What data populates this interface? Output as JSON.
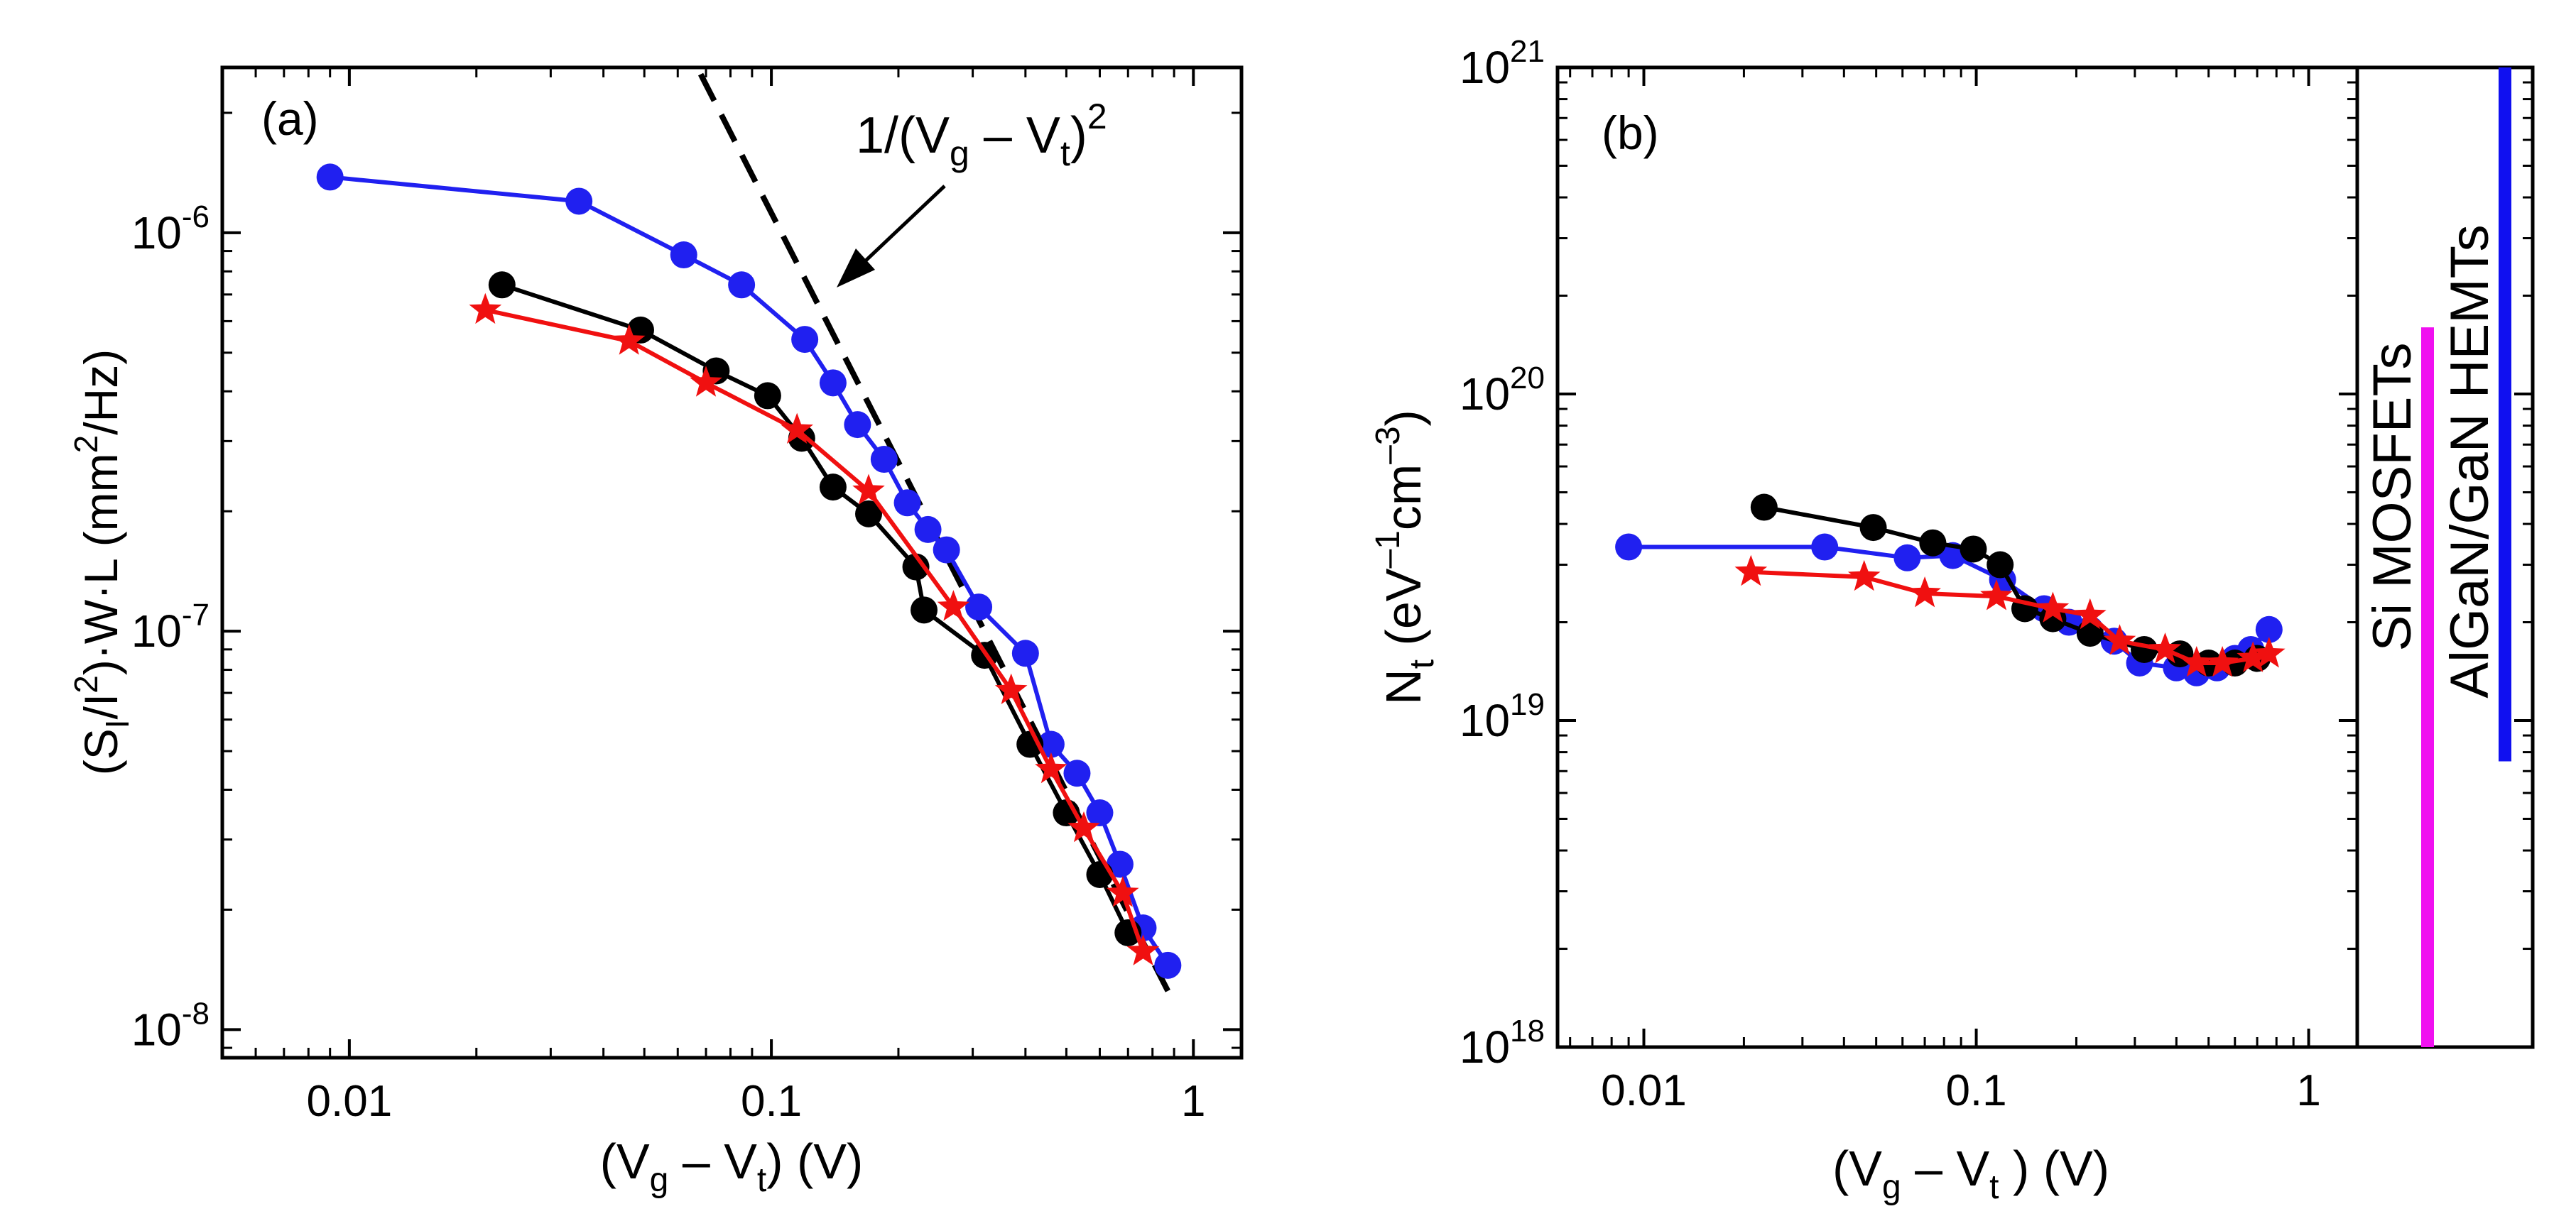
{
  "chart_data": [
    {
      "type": "line",
      "panel_label": "(a)",
      "ylabel": {
        "prefix": "(S",
        "sub1": "I",
        "mid": "/I",
        "sup": "2",
        "rest": ")·W·L (mm",
        "sup2": "2",
        "tail": "/Hz)"
      },
      "xlabel": {
        "a": "(V",
        "sub1": "g",
        "b": " – V",
        "sub2": "t",
        "c": ") (V)"
      },
      "xscale": "log",
      "yscale": "log",
      "xlim": [
        0.005,
        1.3
      ],
      "ylim": [
        8.5e-09,
        2.6e-06
      ],
      "xticks": [
        {
          "v": 0.01,
          "label": "0.01"
        },
        {
          "v": 0.1,
          "label": "0.1"
        },
        {
          "v": 1,
          "label": "1"
        }
      ],
      "yticks": [
        {
          "v": 1e-08,
          "base": "10",
          "exp": "-8"
        },
        {
          "v": 1e-07,
          "base": "10",
          "exp": "-7"
        },
        {
          "v": 1e-06,
          "base": "10",
          "exp": "-6"
        }
      ],
      "annotation": {
        "a": "1/(V",
        "sub1": "g",
        "b": " – V",
        "sub2": "t",
        "c": ")",
        "sup": "2"
      },
      "reference_line": {
        "style": "dashed",
        "x": [
          0.068,
          0.87
        ],
        "y": [
          2.5e-06,
          1.25e-08
        ]
      },
      "series": [
        {
          "color": "#2020f0",
          "marker": "circle",
          "x": [
            0.009,
            0.035,
            0.062,
            0.085,
            0.12,
            0.14,
            0.16,
            0.185,
            0.21,
            0.235,
            0.26,
            0.31,
            0.4,
            0.46,
            0.53,
            0.6,
            0.67,
            0.76,
            0.87
          ],
          "y": [
            1.38e-06,
            1.2e-06,
            8.8e-07,
            7.4e-07,
            5.4e-07,
            4.2e-07,
            3.3e-07,
            2.7e-07,
            2.1e-07,
            1.8e-07,
            1.6e-07,
            1.15e-07,
            8.8e-08,
            5.2e-08,
            4.4e-08,
            3.5e-08,
            2.6e-08,
            1.8e-08,
            1.45e-08
          ]
        },
        {
          "color": "#000000",
          "marker": "circle",
          "x": [
            0.023,
            0.049,
            0.074,
            0.098,
            0.118,
            0.14,
            0.17,
            0.22,
            0.23,
            0.32,
            0.41,
            0.5,
            0.6,
            0.7
          ],
          "y": [
            7.4e-07,
            5.7e-07,
            4.5e-07,
            3.9e-07,
            3.05e-07,
            2.3e-07,
            1.97e-07,
            1.45e-07,
            1.13e-07,
            8.7e-08,
            5.2e-08,
            3.5e-08,
            2.45e-08,
            1.75e-08
          ]
        },
        {
          "color": "#f01010",
          "marker": "star",
          "x": [
            0.021,
            0.046,
            0.07,
            0.115,
            0.17,
            0.27,
            0.37,
            0.46,
            0.55,
            0.68,
            0.76
          ],
          "y": [
            6.4e-07,
            5.35e-07,
            4.2e-07,
            3.2e-07,
            2.25e-07,
            1.15e-07,
            7.1e-08,
            4.5e-08,
            3.2e-08,
            2.2e-08,
            1.57e-08
          ]
        }
      ]
    },
    {
      "type": "line",
      "panel_label": "(b)",
      "ylabel": {
        "a": "N",
        "sub1": "t",
        "b": " (eV",
        "sup1": "–1",
        "c": "cm",
        "sup2": "–3",
        "d": ")"
      },
      "xlabel": {
        "a": "(V",
        "sub1": "g",
        "b": " – V",
        "sub2": "t",
        "c": " ) (V)"
      },
      "xscale": "log",
      "yscale": "log",
      "xlim": [
        0.0055,
        1.4
      ],
      "ylim": [
        1e+18,
        1e+21
      ],
      "xticks": [
        {
          "v": 0.01,
          "label": "0.01"
        },
        {
          "v": 0.1,
          "label": "0.1"
        },
        {
          "v": 1,
          "label": "1"
        }
      ],
      "yticks": [
        {
          "v": 1e+18,
          "base": "10",
          "exp": "18"
        },
        {
          "v": 1e+19,
          "base": "10",
          "exp": "19"
        },
        {
          "v": 1e+20,
          "base": "10",
          "exp": "20"
        },
        {
          "v": 1e+21,
          "base": "10",
          "exp": "21"
        }
      ],
      "series": [
        {
          "color": "#2020f0",
          "marker": "circle",
          "x": [
            0.009,
            0.035,
            0.062,
            0.085,
            0.12,
            0.16,
            0.19,
            0.22,
            0.26,
            0.31,
            0.4,
            0.46,
            0.53,
            0.6,
            0.67,
            0.76
          ],
          "y": [
            3.4e+19,
            3.4e+19,
            3.15e+19,
            3.2e+19,
            2.7e+19,
            2.2e+19,
            2e+19,
            1.9e+19,
            1.75e+19,
            1.5e+19,
            1.45e+19,
            1.4e+19,
            1.45e+19,
            1.55e+19,
            1.65e+19,
            1.9e+19
          ]
        },
        {
          "color": "#000000",
          "marker": "circle",
          "x": [
            0.023,
            0.049,
            0.074,
            0.098,
            0.118,
            0.14,
            0.17,
            0.22,
            0.32,
            0.41,
            0.5,
            0.6,
            0.7
          ],
          "y": [
            4.5e+19,
            3.9e+19,
            3.5e+19,
            3.35e+19,
            3e+19,
            2.2e+19,
            2.05e+19,
            1.85e+19,
            1.65e+19,
            1.6e+19,
            1.5e+19,
            1.5e+19,
            1.55e+19
          ]
        },
        {
          "color": "#f01010",
          "marker": "star",
          "x": [
            0.021,
            0.046,
            0.07,
            0.115,
            0.17,
            0.22,
            0.27,
            0.37,
            0.46,
            0.55,
            0.68,
            0.76
          ],
          "y": [
            2.85e+19,
            2.75e+19,
            2.45e+19,
            2.4e+19,
            2.2e+19,
            2.1e+19,
            1.75e+19,
            1.65e+19,
            1.5e+19,
            1.5e+19,
            1.55e+19,
            1.6e+19
          ]
        }
      ]
    },
    {
      "type": "bar",
      "orientation": "vertical-ranges",
      "yscale": "log",
      "ylim": [
        1e+18,
        1e+21
      ],
      "ranges": [
        {
          "label": "Si MOSFETs",
          "color": "#f010f0",
          "ymin": 1e+18,
          "ymax": 1.6e+20
        },
        {
          "label": "AlGaN/GaN HEMTs",
          "color": "#1010f0",
          "ymin": 7.5e+18,
          "ymax": 1e+21
        }
      ]
    }
  ]
}
